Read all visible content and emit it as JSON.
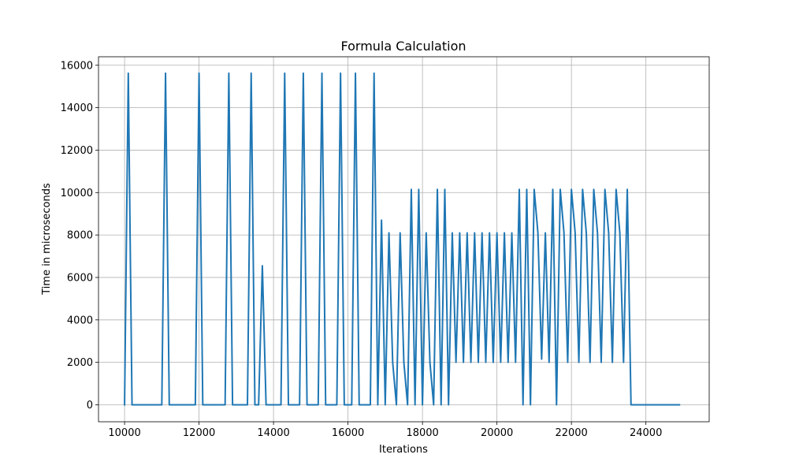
{
  "chart_data": {
    "type": "line",
    "title": "Formula Calculation",
    "xlabel": "Iterations",
    "ylabel": "Time in microseconds",
    "xlim": [
      9300,
      25700
    ],
    "ylim": [
      -800,
      16400
    ],
    "xticks": [
      10000,
      12000,
      14000,
      16000,
      18000,
      20000,
      22000,
      24000
    ],
    "yticks": [
      0,
      2000,
      4000,
      6000,
      8000,
      10000,
      12000,
      14000,
      16000
    ],
    "grid": true,
    "series": [
      {
        "color": "#1f77b4",
        "x": [
          10000,
          10100,
          10200,
          11000,
          11100,
          11200,
          11900,
          12000,
          12100,
          12700,
          12800,
          12900,
          13300,
          13400,
          13500,
          13600,
          13700,
          13800,
          14200,
          14300,
          14400,
          14700,
          14800,
          14900,
          15200,
          15300,
          15400,
          15700,
          15800,
          15900,
          16100,
          16200,
          16300,
          16600,
          16700,
          16800,
          16900,
          17000,
          17100,
          17200,
          17300,
          17400,
          17500,
          17600,
          17700,
          17800,
          17900,
          18000,
          18100,
          18200,
          18300,
          18400,
          18500,
          18600,
          18700,
          18800,
          18900,
          19000,
          19100,
          19200,
          19300,
          19400,
          19500,
          19600,
          19700,
          19800,
          19900,
          20000,
          20100,
          20200,
          20300,
          20400,
          20500,
          20600,
          20700,
          20800,
          20900,
          21000,
          21100,
          21200,
          21300,
          21400,
          21500,
          21600,
          21700,
          21800,
          21900,
          22000,
          22100,
          22200,
          22300,
          22400,
          22500,
          22600,
          22700,
          22800,
          22900,
          23000,
          23100,
          23200,
          23300,
          23400,
          23500,
          23600,
          24000,
          24500,
          24900
        ],
        "y": [
          0,
          15625,
          0,
          0,
          15625,
          0,
          0,
          15625,
          0,
          0,
          15625,
          0,
          0,
          15625,
          0,
          0,
          6550,
          0,
          0,
          15625,
          0,
          0,
          15625,
          0,
          0,
          15625,
          0,
          0,
          15625,
          0,
          0,
          15625,
          0,
          0,
          15625,
          0,
          8700,
          0,
          8100,
          2000,
          0,
          8100,
          2000,
          0,
          10150,
          0,
          10150,
          0,
          8100,
          2000,
          0,
          10150,
          0,
          10150,
          0,
          8100,
          2000,
          8100,
          2000,
          8100,
          2000,
          8100,
          2000,
          8100,
          2000,
          8100,
          2000,
          8100,
          2000,
          8100,
          2000,
          8100,
          2000,
          10150,
          0,
          10150,
          0,
          10150,
          8100,
          2150,
          8100,
          2000,
          10150,
          0,
          10150,
          8100,
          2000,
          10150,
          8100,
          2000,
          10150,
          8100,
          2000,
          10150,
          8100,
          2000,
          10150,
          8100,
          2000,
          10150,
          8100,
          2000,
          10150,
          0,
          0,
          0,
          0
        ]
      }
    ]
  }
}
